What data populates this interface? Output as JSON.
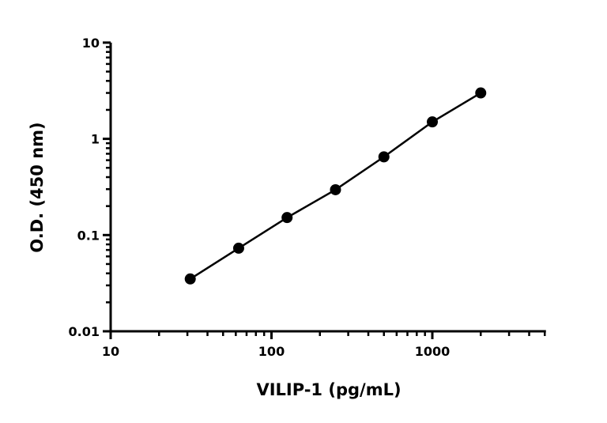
{
  "chart_data": {
    "type": "scatter",
    "title": "",
    "xlabel": "VILIP-1 (pg/mL)",
    "ylabel": "O.D. (450 nm)",
    "xscale": "log",
    "yscale": "log",
    "xlim": [
      10,
      5000
    ],
    "ylim": [
      0.01,
      10
    ],
    "x_ticks": [
      "10",
      "100",
      "1000"
    ],
    "y_ticks": [
      "0.01",
      "0.1",
      "1",
      "10"
    ],
    "grid": false,
    "legend": "none",
    "fit_line": true,
    "color": "#000000",
    "series": [
      {
        "x": [
          31.25,
          62.5,
          125,
          250,
          500,
          1000,
          2000
        ],
        "y": [
          0.035,
          0.073,
          0.152,
          0.296,
          0.65,
          1.5,
          3.0
        ]
      }
    ]
  }
}
